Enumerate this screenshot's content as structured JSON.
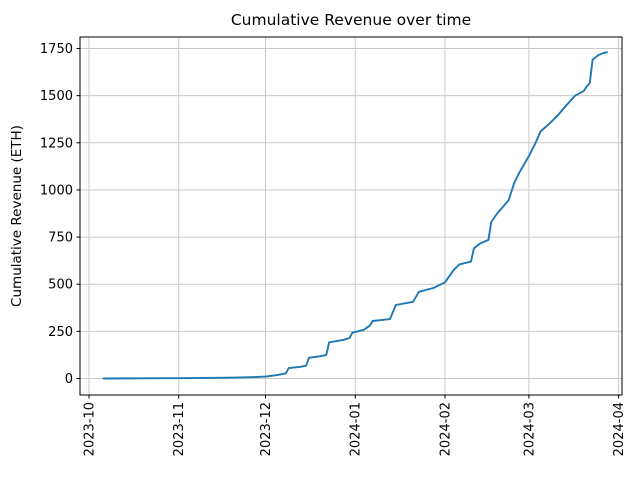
{
  "chart_data": {
    "type": "line",
    "title": "Cumulative Revenue over time",
    "xlabel": "",
    "ylabel": "Cumulative Revenue (ETH)",
    "legend": null,
    "grid": true,
    "line_color": "#1f77b4",
    "grid_color": "#c9c9c9",
    "axis_color": "#000000",
    "x_tick_labels": [
      "2023-10",
      "2023-11",
      "2023-12",
      "2024-01",
      "2024-02",
      "2024-03",
      "2024-04"
    ],
    "y_ticks": [
      0,
      250,
      500,
      750,
      1000,
      1250,
      1500,
      1750
    ],
    "ylim": [
      -90,
      1815
    ],
    "x_range": [
      "2023-09-28",
      "2024-04-02"
    ],
    "series_name": "Cumulative Revenue",
    "points": [
      [
        "2023-10-06",
        0
      ],
      [
        "2023-10-20",
        1
      ],
      [
        "2023-11-05",
        2
      ],
      [
        "2023-11-18",
        4
      ],
      [
        "2023-11-26",
        7
      ],
      [
        "2023-12-01",
        10
      ],
      [
        "2023-12-05",
        18
      ],
      [
        "2023-12-08",
        27
      ],
      [
        "2023-12-09",
        55
      ],
      [
        "2023-12-13",
        62
      ],
      [
        "2023-12-15",
        68
      ],
      [
        "2023-12-16",
        110
      ],
      [
        "2023-12-20",
        118
      ],
      [
        "2023-12-22",
        125
      ],
      [
        "2023-12-23",
        192
      ],
      [
        "2023-12-28",
        205
      ],
      [
        "2023-12-30",
        215
      ],
      [
        "2023-12-31",
        243
      ],
      [
        "2024-01-04",
        258
      ],
      [
        "2024-01-06",
        280
      ],
      [
        "2024-01-07",
        305
      ],
      [
        "2024-01-13",
        315
      ],
      [
        "2024-01-15",
        390
      ],
      [
        "2024-01-21",
        407
      ],
      [
        "2024-01-23",
        460
      ],
      [
        "2024-01-28",
        480
      ],
      [
        "2024-02-01",
        510
      ],
      [
        "2024-02-04",
        575
      ],
      [
        "2024-02-06",
        605
      ],
      [
        "2024-02-10",
        620
      ],
      [
        "2024-02-11",
        690
      ],
      [
        "2024-02-13",
        715
      ],
      [
        "2024-02-16",
        735
      ],
      [
        "2024-02-17",
        830
      ],
      [
        "2024-02-19",
        875
      ],
      [
        "2024-02-23",
        945
      ],
      [
        "2024-02-25",
        1040
      ],
      [
        "2024-02-27",
        1100
      ],
      [
        "2024-03-01",
        1180
      ],
      [
        "2024-03-03",
        1240
      ],
      [
        "2024-03-05",
        1310
      ],
      [
        "2024-03-08",
        1350
      ],
      [
        "2024-03-11",
        1395
      ],
      [
        "2024-03-14",
        1450
      ],
      [
        "2024-03-17",
        1500
      ],
      [
        "2024-03-20",
        1525
      ],
      [
        "2024-03-21",
        1550
      ],
      [
        "2024-03-22",
        1565
      ],
      [
        "2024-03-23",
        1690
      ],
      [
        "2024-03-25",
        1715
      ],
      [
        "2024-03-27",
        1728
      ],
      [
        "2024-03-28",
        1730
      ]
    ]
  }
}
